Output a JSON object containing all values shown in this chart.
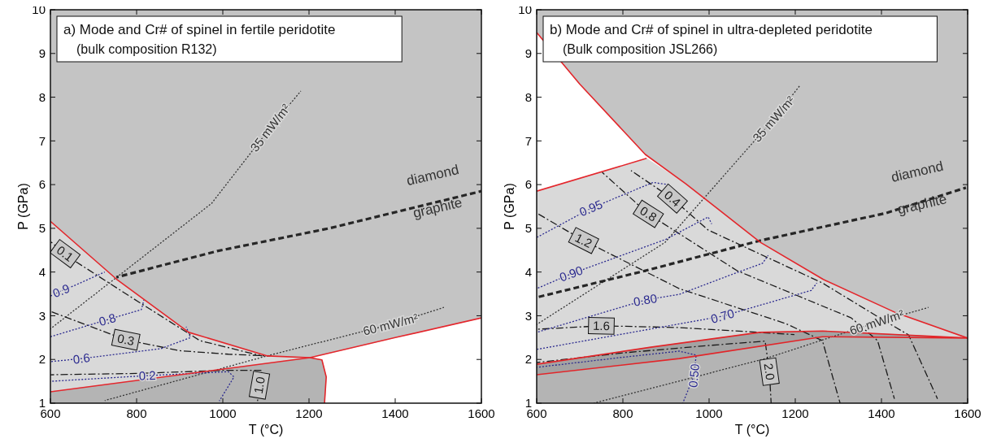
{
  "chart_data": [
    {
      "type": "line",
      "title": "a) Mode and Cr# of spinel in fertile peridotite",
      "subtitle": "(bulk composition R132)",
      "xlabel": "T (°C)",
      "ylabel": "P (GPa)",
      "xlim": [
        600,
        1600
      ],
      "ylim": [
        1,
        10
      ],
      "xticks": [
        600,
        800,
        1000,
        1200,
        1400,
        1600
      ],
      "yticks": [
        1,
        2,
        3,
        4,
        5,
        6,
        7,
        8,
        9,
        10
      ],
      "series": [
        {
          "name": "35 mW/m²",
          "color": "#333333",
          "line_style": "dotted",
          "x": [
            1181,
            1110,
            974,
            600
          ],
          "values": [
            8.14,
            7.3,
            5.57,
            2.7
          ]
        },
        {
          "name": "60 mW/m²",
          "color": "#333333",
          "line_style": "dotted",
          "x": [
            1513,
            1389,
            1117,
            726
          ],
          "values": [
            3.19,
            2.8,
            2.12,
            1.06
          ]
        },
        {
          "color": "#262626",
          "line_style": "dashed",
          "x": [
            753,
            987,
            1247,
            1600
          ],
          "values": [
            3.88,
            4.48,
            5.0,
            5.85
          ]
        },
        {
          "name": "0.1",
          "color": "#1a1a1a",
          "line_style": "dashed",
          "x": [
            600,
            634,
            660,
            804,
            947,
            1091
          ],
          "values": [
            4.7,
            4.42,
            4.23,
            3.32,
            2.43,
            2.08
          ]
        },
        {
          "name": "0.3",
          "color": "#1a1a1a",
          "line_style": "dashed",
          "x": [
            600,
            775,
            900,
            1013,
            1110
          ],
          "values": [
            3.1,
            2.45,
            2.2,
            2.12,
            2.08
          ]
        },
        {
          "name": "1.0",
          "color": "#1a1a1a",
          "line_style": "dashed",
          "x": [
            1080,
            1085,
            1091,
            1000,
            800,
            600
          ],
          "values": [
            1.0,
            1.41,
            1.75,
            1.75,
            1.68,
            1.65
          ]
        },
        {
          "name": "0.9",
          "color": "#2b2a8f",
          "line_style": "dotted",
          "x": [
            600,
            625,
            660,
            726
          ],
          "values": [
            3.45,
            3.57,
            3.71,
            4.0
          ]
        },
        {
          "name": "0.8",
          "color": "#2b2a8f",
          "line_style": "dotted",
          "x": [
            600,
            732,
            811,
            817
          ],
          "values": [
            2.52,
            2.91,
            3.14,
            3.36
          ]
        },
        {
          "name": "0.6",
          "color": "#2b2a8f",
          "line_style": "dotted",
          "x": [
            600,
            672,
            857,
            925,
            915
          ],
          "values": [
            1.95,
            2.02,
            2.25,
            2.5,
            2.75
          ]
        },
        {
          "name": "0.2",
          "color": "#2b2a8f",
          "line_style": "dotted",
          "x": [
            600,
            825,
            1013,
            1026,
            992
          ],
          "values": [
            1.5,
            1.63,
            1.72,
            1.6,
            1.05
          ]
        },
        {
          "color": "#e3262b",
          "line_style": "solid",
          "x": [
            600,
            753,
            921,
            1104,
            1202,
            1230,
            1240,
            1236
          ],
          "values": [
            5.16,
            3.84,
            2.62,
            2.08,
            2.04,
            1.99,
            1.6,
            1.0
          ]
        },
        {
          "color": "#e4272d",
          "line_style": "solid",
          "x": [
            600,
            1202,
            1400,
            1600
          ],
          "values": [
            1.26,
            2.04,
            2.5,
            2.95
          ]
        }
      ],
      "annotations": [
        "diamond",
        "graphite"
      ]
    },
    {
      "type": "line",
      "title": "b) Mode and Cr# of spinel in ultra-depleted peridotite",
      "subtitle": "(Bulk composition JSL266)",
      "xlabel": "T (°C)",
      "ylabel": "P (GPa)",
      "xlim": [
        600,
        1600
      ],
      "ylim": [
        1,
        10
      ],
      "xticks": [
        600,
        800,
        1000,
        1200,
        1400,
        1600
      ],
      "yticks": [
        1,
        2,
        3,
        4,
        5,
        6,
        7,
        8,
        9,
        10
      ],
      "series": [
        {
          "name": "35 mW/m²",
          "color": "#333333",
          "line_style": "dotted",
          "x": [
            1211,
            1150,
            898,
            600
          ],
          "values": [
            8.27,
            7.5,
            4.68,
            2.8
          ]
        },
        {
          "name": "60 mW/m²",
          "color": "#333333",
          "line_style": "dotted",
          "x": [
            1509,
            1389,
            1131,
            733
          ],
          "values": [
            3.19,
            2.85,
            2.02,
            1.0
          ]
        },
        {
          "color": "#262626",
          "line_style": "dashed",
          "x": [
            600,
            852,
            1119,
            1411,
            1596
          ],
          "values": [
            3.42,
            4.03,
            4.72,
            5.35,
            5.93
          ]
        },
        {
          "name": "0.4",
          "color": "#1a1a1a",
          "line_style": "dashed",
          "x": [
            819,
            915,
            998,
            1263,
            1396,
            1463,
            1530
          ],
          "values": [
            6.32,
            5.68,
            4.96,
            3.75,
            2.95,
            2.56,
            1.1
          ]
        },
        {
          "name": "0.8",
          "color": "#1a1a1a",
          "line_style": "dashed",
          "x": [
            752,
            859,
            1065,
            1330,
            1391,
            1430
          ],
          "values": [
            6.28,
            5.33,
            4.03,
            2.95,
            2.43,
            1.1
          ]
        },
        {
          "name": "1.2",
          "color": "#1a1a1a",
          "line_style": "dashed",
          "x": [
            600,
            709,
            931,
            1178,
            1263,
            1304
          ],
          "values": [
            5.35,
            4.72,
            3.62,
            2.82,
            2.43,
            1.0
          ]
        },
        {
          "name": "1.6",
          "color": "#1a1a1a",
          "line_style": "dashed",
          "x": [
            600,
            750,
            931,
            1198
          ],
          "values": [
            2.69,
            2.77,
            2.73,
            2.57
          ]
        },
        {
          "name": "2.0",
          "color": "#1a1a1a",
          "line_style": "dashed",
          "x": [
            1144,
            1140,
            1130,
            1000,
            800,
            600
          ],
          "values": [
            1.0,
            1.72,
            2.42,
            2.32,
            2.15,
            1.93
          ]
        },
        {
          "name": "0.95",
          "color": "#2b2a8f",
          "line_style": "dotted",
          "x": [
            600,
            726,
            870,
            905
          ],
          "values": [
            4.79,
            5.46,
            6.05,
            6.0
          ]
        },
        {
          "name": "0.90",
          "color": "#2b2a8f",
          "line_style": "dotted",
          "x": [
            600,
            680,
            900,
            998,
            1006
          ],
          "values": [
            3.62,
            3.96,
            4.75,
            5.26,
            5.1
          ]
        },
        {
          "name": "0.80",
          "color": "#2b2a8f",
          "line_style": "dotted",
          "x": [
            600,
            852,
            931,
            1057,
            1124,
            1137
          ],
          "values": [
            2.62,
            3.36,
            3.49,
            3.96,
            4.2,
            4.38
          ]
        },
        {
          "name": "0.70",
          "color": "#2b2a8f",
          "line_style": "dotted",
          "x": [
            600,
            1031,
            1237,
            1250
          ],
          "values": [
            2.23,
            2.99,
            3.58,
            3.75
          ]
        },
        {
          "name": "0.50",
          "color": "#2b2a8f",
          "line_style": "dotted",
          "x": [
            939,
            965,
            970,
            931,
            800,
            600
          ],
          "values": [
            1.0,
            1.63,
            2.1,
            2.19,
            2.05,
            1.82
          ]
        },
        {
          "color": "#e3262b",
          "line_style": "solid",
          "x": [
            600,
            700,
            852,
            946,
            1119,
            1265,
            1431,
            1600
          ],
          "values": [
            9.48,
            8.3,
            6.69,
            6.02,
            4.68,
            3.83,
            3.08,
            2.49
          ]
        },
        {
          "color": "#e4272d",
          "line_style": "solid",
          "x": [
            600,
            855
          ],
          "values": [
            5.85,
            6.6
          ]
        },
        {
          "color": "#e22529",
          "line_style": "solid",
          "x": [
            600,
            865,
            1118,
            1263,
            1600,
            1263,
            931,
            600
          ],
          "values": [
            1.89,
            2.28,
            2.62,
            2.65,
            2.49,
            2.52,
            2.02,
            1.65
          ]
        }
      ],
      "annotations": [
        "diamond",
        "graphite"
      ]
    }
  ]
}
